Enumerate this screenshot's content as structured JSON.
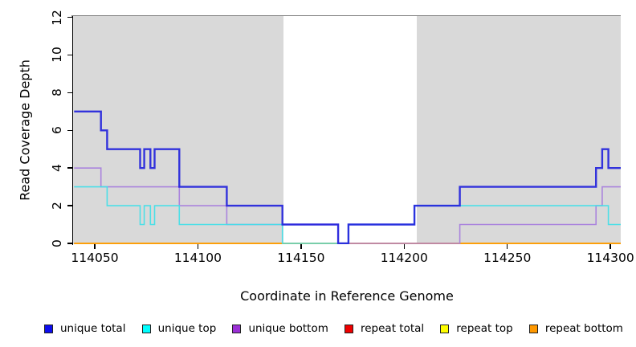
{
  "chart_data": {
    "type": "line",
    "subtype": "step-coverage",
    "title": "",
    "xlabel": "Coordinate in Reference Genome",
    "ylabel": "Read Coverage Depth",
    "xlim": [
      114039.5,
      114305
    ],
    "ylim": [
      0,
      12
    ],
    "xticks": [
      114050,
      114100,
      114150,
      114200,
      114250,
      114300
    ],
    "xtick_labels": [
      "114050",
      "114100",
      "114150",
      "114200",
      "114250",
      "114300"
    ],
    "yticks": [
      0,
      2,
      4,
      6,
      8,
      10,
      12
    ],
    "ytick_labels": [
      "0",
      "2",
      "4",
      "6",
      "8",
      "10",
      "12"
    ],
    "grid": false,
    "plot_bg_color": "#d9d9d9",
    "top_border_color": "#828282",
    "highlight_band": {
      "x0": 114141.5,
      "x1": 114206,
      "color": "#ffffff"
    },
    "series": [
      {
        "name": "unique total",
        "color": "#2424dc",
        "line_width": 2.4,
        "opacity": 0.92,
        "steps": [
          [
            114040,
            7
          ],
          [
            114053,
            6
          ],
          [
            114056,
            5
          ],
          [
            114072,
            4
          ],
          [
            114074,
            5
          ],
          [
            114077,
            4
          ],
          [
            114079,
            5
          ],
          [
            114091,
            3
          ],
          [
            114114,
            2
          ],
          [
            114141,
            1
          ],
          [
            114168,
            0
          ],
          [
            114173,
            1
          ],
          [
            114205,
            2
          ],
          [
            114227,
            3
          ],
          [
            114293,
            4
          ],
          [
            114296,
            5
          ],
          [
            114299,
            4
          ]
        ]
      },
      {
        "name": "unique top",
        "color": "#45dfe8",
        "line_width": 1.6,
        "opacity": 0.95,
        "steps": [
          [
            114040,
            3
          ],
          [
            114056,
            2
          ],
          [
            114072,
            1
          ],
          [
            114074,
            2
          ],
          [
            114077,
            1
          ],
          [
            114079,
            2
          ],
          [
            114091,
            1
          ],
          [
            114141,
            0
          ],
          [
            114173,
            1
          ],
          [
            114205,
            2
          ],
          [
            114299,
            1
          ]
        ]
      },
      {
        "name": "unique bottom",
        "color": "#a87fdd",
        "line_width": 1.6,
        "opacity": 0.95,
        "steps": [
          [
            114040,
            4
          ],
          [
            114053,
            3
          ],
          [
            114091,
            2
          ],
          [
            114114,
            1
          ],
          [
            114168,
            0
          ],
          [
            114227,
            1
          ],
          [
            114293,
            2
          ],
          [
            114296,
            3
          ]
        ]
      },
      {
        "name": "repeat total",
        "color": "#dd1111",
        "line_width": 1.6,
        "opacity": 0.95,
        "steps": [
          [
            114040,
            0
          ]
        ]
      },
      {
        "name": "repeat top",
        "color": "#f2f21c",
        "line_width": 1.6,
        "opacity": 0.95,
        "steps": [
          [
            114040,
            0
          ]
        ]
      },
      {
        "name": "repeat bottom",
        "color": "#ff9c00",
        "line_width": 1.8,
        "opacity": 1,
        "steps": [
          [
            114040,
            0
          ]
        ]
      }
    ],
    "draw_order": [
      "repeat total",
      "repeat top",
      "repeat bottom",
      "unique bottom",
      "unique top",
      "unique total"
    ]
  },
  "legend": {
    "items": [
      {
        "label": "unique total",
        "color": "#0d0dee"
      },
      {
        "label": "unique top",
        "color": "#00ffff"
      },
      {
        "label": "unique bottom",
        "color": "#9b30d6"
      },
      {
        "label": "repeat total",
        "color": "#ee0000"
      },
      {
        "label": "repeat top",
        "color": "#ffff00"
      },
      {
        "label": "repeat bottom",
        "color": "#ff9800"
      }
    ]
  }
}
